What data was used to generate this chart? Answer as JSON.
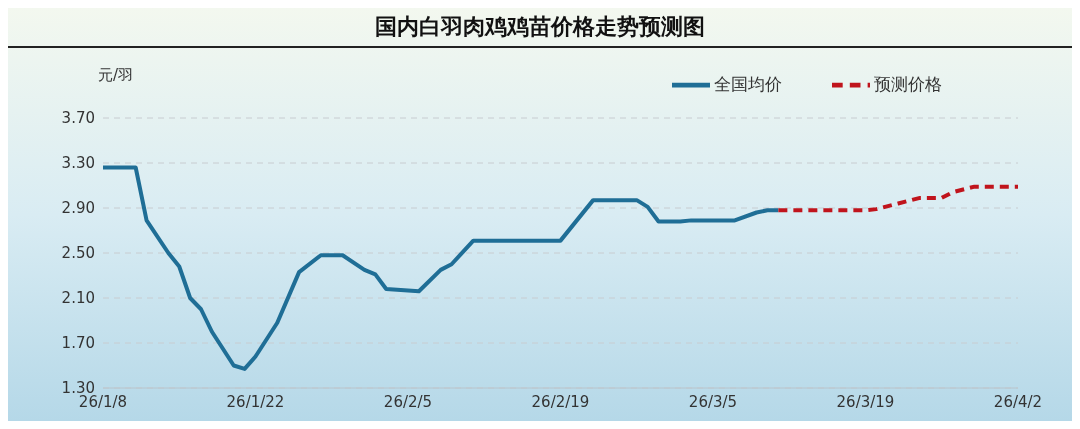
{
  "chart_data": {
    "type": "line",
    "title": "国内白羽肉鸡鸡苗价格走势预测图",
    "ylabel": "元/羽",
    "xlim": [
      "--01-08",
      "--04-02"
    ],
    "xticks": [
      {
        "value": "--01-08",
        "label": "26/1/8"
      },
      {
        "value": "--01-22",
        "label": "26/1/22"
      },
      {
        "value": "--02-05",
        "label": "26/2/5"
      },
      {
        "value": "--02-19",
        "label": "26/2/19"
      },
      {
        "value": "--03-05",
        "label": "26/3/5"
      },
      {
        "value": "--03-19",
        "label": "26/3/19"
      },
      {
        "value": "--04-02",
        "label": "26/4/2"
      }
    ],
    "ylim": [
      1.3,
      3.7
    ],
    "yticks": [
      {
        "value": 1.3,
        "label": "1.30"
      },
      {
        "value": 1.7,
        "label": "1.70"
      },
      {
        "value": 2.1,
        "label": "2.10"
      },
      {
        "value": 2.5,
        "label": "2.50"
      },
      {
        "value": 2.9,
        "label": "2.90"
      },
      {
        "value": 3.3,
        "label": "3.30"
      },
      {
        "value": 3.7,
        "label": "3.70"
      }
    ],
    "grid": "y",
    "legend": "top right",
    "marker": "none",
    "series": [
      {
        "name": "全国均价",
        "color": "#1f6e96",
        "line_style": "solid",
        "x": [
          "--01-08",
          "--01-11",
          "--01-12",
          "--01-14",
          "--01-15",
          "--01-16",
          "--01-17",
          "--01-18",
          "--01-20",
          "--01-21",
          "--01-22",
          "--01-24",
          "--01-26",
          "--01-28",
          "--01-30",
          "--02-01",
          "--02-02",
          "--02-03",
          "--02-06",
          "--02-08",
          "--02-09",
          "--02-11",
          "--02-19",
          "--02-22",
          "--02-26",
          "--02-27",
          "--02-28",
          "--03-02",
          "--03-03",
          "--03-07",
          "--03-09",
          "--03-10",
          "--03-11"
        ],
        "values": [
          3.26,
          3.26,
          2.79,
          2.5,
          2.38,
          2.1,
          2.0,
          1.8,
          1.5,
          1.47,
          1.58,
          1.88,
          2.33,
          2.48,
          2.48,
          2.35,
          2.31,
          2.18,
          2.16,
          2.35,
          2.4,
          2.61,
          2.61,
          2.97,
          2.97,
          2.91,
          2.78,
          2.78,
          2.79,
          2.79,
          2.86,
          2.88,
          2.88
        ]
      },
      {
        "name": "预测价格",
        "color": "#c0141c",
        "line_style": "dashed",
        "x": [
          "--03-11",
          "--03-19",
          "--03-20",
          "--03-22",
          "--03-24",
          "--03-26",
          "--03-27",
          "--03-29",
          "--04-02"
        ],
        "values": [
          2.88,
          2.88,
          2.89,
          2.94,
          2.99,
          2.99,
          3.04,
          3.09,
          3.09
        ]
      }
    ]
  }
}
